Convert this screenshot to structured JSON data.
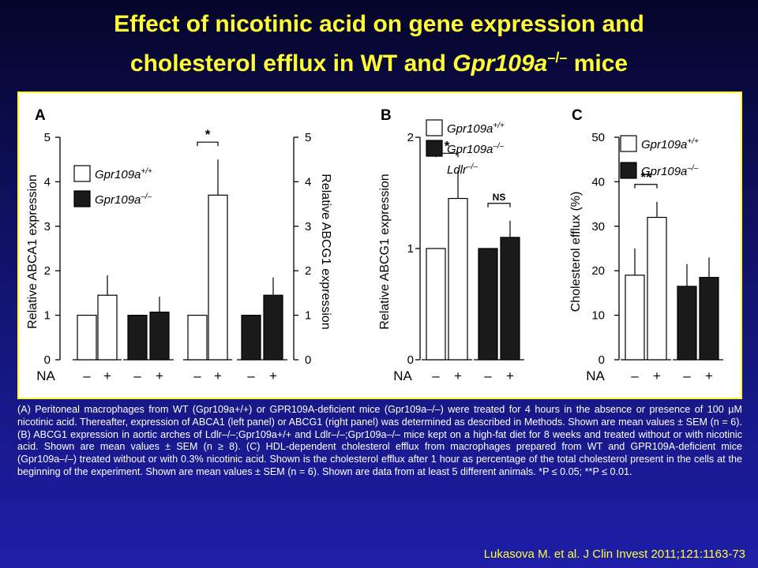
{
  "slide": {
    "title_line1": "Effect of nicotinic acid on gene expression and",
    "title_line2_prefix": "cholesterol efflux in WT and ",
    "title_line2_gene": "Gpr109a",
    "title_line2_sup": "–/–",
    "title_line2_suffix": " mice",
    "caption": "(A) Peritoneal macrophages from WT (Gpr109a+/+) or GPR109A-deficient mice (Gpr109a–/–) were treated for 4 hours in the absence or presence of 100 µM nicotinic acid. Thereafter, expression of ABCA1 (left panel) or ABCG1 (right panel) was determined as described in Methods. Shown are mean values ± SEM (n = 6). (B) ABCG1 expression in aortic arches of Ldlr–/–;Gpr109a+/+ and Ldlr–/–;Gpr109a–/– mice kept on a high-fat diet for 8 weeks and treated without or with nicotinic acid. Shown are mean values ± SEM (n ≥ 8). (C) HDL-dependent cholesterol efflux from macrophages prepared from WT and GPR109A-deficient mice (Gpr109a–/–) treated without or with 0.3% nicotinic acid. Shown is the cholesterol efflux after 1 hour as percentage of the total cholesterol present in the cells at the beginning of the experiment. Shown are mean values ± SEM (n = 6). Shown are data from at least 5 different animals. *P ≤ 0.05; **P ≤ 0.01.",
    "citation": "Lukasova M. et al. J Clin Invest 2011;121:1163-73"
  },
  "colors": {
    "title": "#ffff33",
    "panel_border": "#ffff33",
    "bar_white": "#ffffff",
    "bar_black": "#1a1a1a",
    "caption": "#ffffff"
  },
  "chart_data": [
    {
      "panel": "A",
      "type": "bar",
      "subplot": "left",
      "ylabel": "Relative ABCA1 expression",
      "ylim": [
        0,
        5
      ],
      "yticks": [
        "0",
        "1",
        "2",
        "3",
        "4",
        "5"
      ],
      "x_prefix": "NA",
      "categories": [
        "–",
        "+",
        "–",
        "+"
      ],
      "values": [
        1.0,
        1.45,
        1.0,
        1.07
      ],
      "errors": [
        0,
        0.45,
        0,
        0.35
      ],
      "fills": [
        "white",
        "white",
        "black",
        "black"
      ],
      "legend": [
        {
          "gene": "Gpr109a",
          "sup": "+/+",
          "fill": "white"
        },
        {
          "gene": "Gpr109a",
          "sup": "–/–",
          "fill": "black"
        }
      ],
      "significance": []
    },
    {
      "panel": "A",
      "type": "bar",
      "subplot": "right",
      "ylabel": "Relative ABCG1 expression",
      "ylim": [
        0,
        5
      ],
      "yticks": [
        "0",
        "1",
        "2",
        "3",
        "4",
        "5"
      ],
      "categories": [
        "–",
        "+",
        "–",
        "+"
      ],
      "values": [
        1.0,
        3.7,
        1.0,
        1.45
      ],
      "errors": [
        0,
        0.8,
        0,
        0.4
      ],
      "fills": [
        "white",
        "white",
        "black",
        "black"
      ],
      "significance": [
        {
          "from": 0,
          "to": 1,
          "label": "*"
        }
      ]
    },
    {
      "panel": "B",
      "type": "bar",
      "ylabel": "Relative ABCG1 expression",
      "ylim": [
        0,
        2
      ],
      "yticks": [
        "0",
        "1",
        "2"
      ],
      "x_prefix": "NA",
      "categories": [
        "–",
        "+",
        "–",
        "+"
      ],
      "values": [
        1.0,
        1.45,
        1.0,
        1.1
      ],
      "errors": [
        0,
        0.25,
        0,
        0.15
      ],
      "fills": [
        "white",
        "white",
        "black",
        "black"
      ],
      "legend": [
        {
          "gene": "Gpr109a",
          "sup": "+/+",
          "fill": "white"
        },
        {
          "gene": "Gpr109a",
          "sup": "–/–",
          "fill": "black"
        },
        {
          "gene": "Ldlr",
          "sup": "–/–",
          "fill": "none"
        }
      ],
      "significance": [
        {
          "from": 0,
          "to": 1,
          "label": "*"
        },
        {
          "from": 2,
          "to": 3,
          "label": "NS"
        }
      ]
    },
    {
      "panel": "C",
      "type": "bar",
      "ylabel": "Cholesterol efflux (%)",
      "ylim": [
        0,
        50
      ],
      "yticks": [
        "0",
        "10",
        "20",
        "30",
        "40",
        "50"
      ],
      "x_prefix": "NA",
      "categories": [
        "–",
        "+",
        "–",
        "+"
      ],
      "values": [
        19,
        32,
        16.5,
        18.5
      ],
      "errors": [
        6,
        3.5,
        5,
        4.5
      ],
      "fills": [
        "white",
        "white",
        "black",
        "black"
      ],
      "legend": [
        {
          "gene": "Gpr109a",
          "sup": "+/+",
          "fill": "white"
        },
        {
          "gene": "Gpr109a",
          "sup": "–/–",
          "fill": "black"
        }
      ],
      "significance": [
        {
          "from": 0,
          "to": 1,
          "label": "**"
        }
      ]
    }
  ]
}
